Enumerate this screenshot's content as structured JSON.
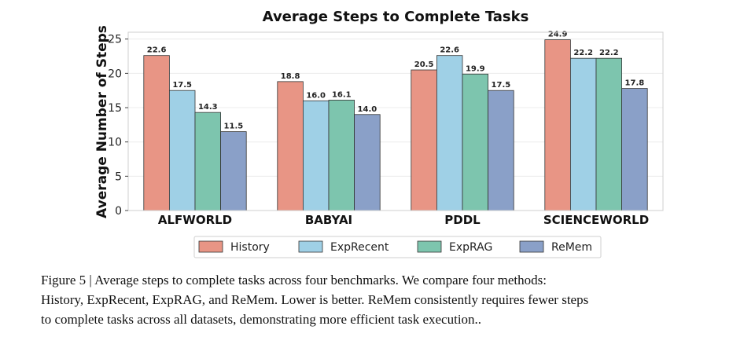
{
  "chart_data": {
    "type": "bar",
    "title": "Average Steps to Complete Tasks",
    "xlabel": "",
    "ylabel": "Average Number of Steps",
    "ylim": [
      0,
      26
    ],
    "yticks": [
      0,
      5,
      10,
      15,
      20,
      25
    ],
    "grid": true,
    "legend_position": "bottom",
    "categories": [
      "ALFWORLD",
      "BABYAI",
      "PDDL",
      "SCIENCEWORLD"
    ],
    "series": [
      {
        "name": "History",
        "color": "#e89585",
        "values": [
          22.6,
          18.8,
          20.5,
          24.9
        ]
      },
      {
        "name": "ExpRecent",
        "color": "#9fd0e6",
        "values": [
          17.5,
          16.0,
          22.6,
          22.2
        ]
      },
      {
        "name": "ExpRAG",
        "color": "#7dc5ae",
        "values": [
          14.3,
          16.1,
          19.9,
          22.2
        ]
      },
      {
        "name": "ReMem",
        "color": "#8aa0c8",
        "values": [
          11.5,
          14.0,
          17.5,
          17.8
        ]
      }
    ]
  },
  "caption": {
    "lines": [
      "Figure 5 | Average steps to complete tasks across four benchmarks.  We compare four methods:",
      "History, ExpRecent, ExpRAG, and ReMem. Lower is better. ReMem consistently requires fewer steps",
      "to complete tasks across all datasets, demonstrating more efficient task execution.."
    ]
  }
}
